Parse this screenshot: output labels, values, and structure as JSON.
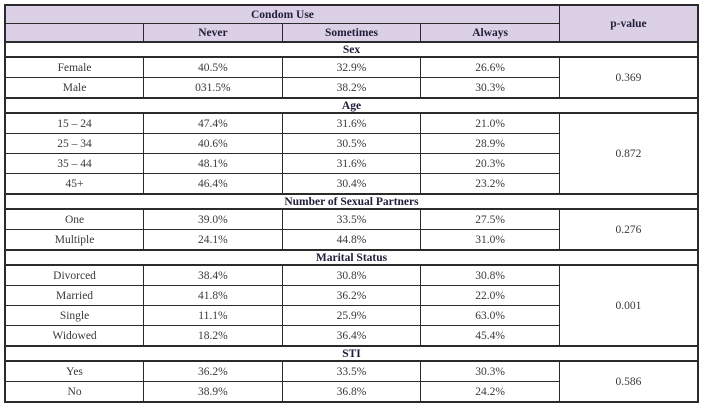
{
  "table": {
    "title": "Condom Use",
    "pvalue_header": "p-value",
    "columns": [
      "Never",
      "Sometimes",
      "Always"
    ],
    "sections": [
      {
        "label": "Sex",
        "p_value": "0.369",
        "rows": [
          {
            "label": "Female",
            "values": [
              "40.5%",
              "32.9%",
              "26.6%"
            ]
          },
          {
            "label": "Male",
            "values": [
              "031.5%",
              "38.2%",
              "30.3%"
            ]
          }
        ]
      },
      {
        "label": "Age",
        "p_value": "0.872",
        "rows": [
          {
            "label": "15 – 24",
            "values": [
              "47.4%",
              "31.6%",
              "21.0%"
            ]
          },
          {
            "label": "25 – 34",
            "values": [
              "40.6%",
              "30.5%",
              "28.9%"
            ]
          },
          {
            "label": "35 – 44",
            "values": [
              "48.1%",
              "31.6%",
              "20.3%"
            ]
          },
          {
            "label": "45+",
            "values": [
              "46.4%",
              "30.4%",
              "23.2%"
            ]
          }
        ]
      },
      {
        "label": "Number of Sexual Partners",
        "p_value": "0.276",
        "rows": [
          {
            "label": "One",
            "values": [
              "39.0%",
              "33.5%",
              "27.5%"
            ]
          },
          {
            "label": "Multiple",
            "values": [
              "24.1%",
              "44.8%",
              "31.0%"
            ]
          }
        ]
      },
      {
        "label": "Marital Status",
        "p_value": "0.001",
        "rows": [
          {
            "label": "Divorced",
            "values": [
              "38.4%",
              "30.8%",
              "30.8%"
            ]
          },
          {
            "label": "Married",
            "values": [
              "41.8%",
              "36.2%",
              "22.0%"
            ]
          },
          {
            "label": "Single",
            "values": [
              "11.1%",
              "25.9%",
              "63.0%"
            ]
          },
          {
            "label": "Widowed",
            "values": [
              "18.2%",
              "36.4%",
              "45.4%"
            ]
          }
        ]
      },
      {
        "label": "STI",
        "p_value": "0.586",
        "rows": [
          {
            "label": "Yes",
            "values": [
              "36.2%",
              "33.5%",
              "30.3%"
            ]
          },
          {
            "label": "No",
            "values": [
              "38.9%",
              "36.8%",
              "24.2%"
            ]
          }
        ]
      }
    ]
  },
  "colors": {
    "header_bg": "#dcd0e6",
    "border": "#2b2b2b",
    "header_text": "#20203a",
    "body_text": "#3a3a3a"
  }
}
